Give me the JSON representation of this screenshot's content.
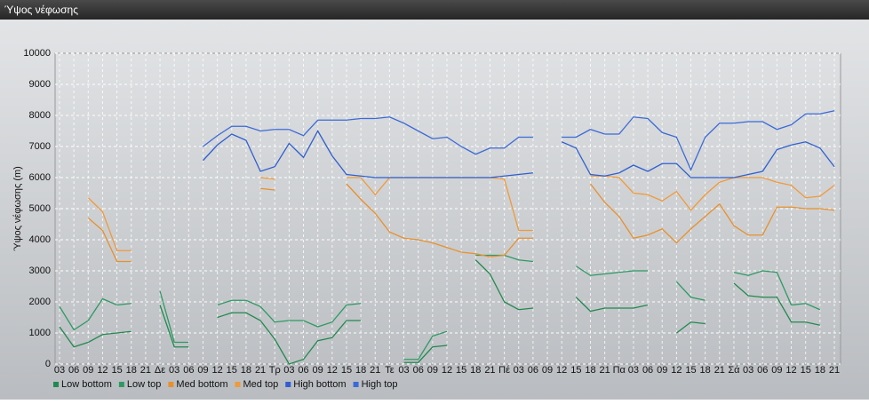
{
  "window": {
    "title": "Ύψος νέφωσης"
  },
  "chart_data": {
    "type": "line",
    "ylabel": "Ύψος νέφωσης (m)",
    "categories": [
      "03",
      "06",
      "09",
      "12",
      "15",
      "18",
      "21",
      "Δε",
      "03",
      "06",
      "09",
      "12",
      "15",
      "18",
      "21",
      "Τρ",
      "03",
      "06",
      "09",
      "12",
      "15",
      "18",
      "21",
      "Τε",
      "03",
      "06",
      "09",
      "12",
      "15",
      "18",
      "21",
      "Πέ",
      "03",
      "06",
      "09",
      "12",
      "15",
      "18",
      "21",
      "Πα",
      "03",
      "06",
      "09",
      "12",
      "15",
      "18",
      "21",
      "Σά",
      "03",
      "06",
      "09",
      "12",
      "15",
      "18",
      "21"
    ],
    "series": [
      {
        "name": "Low bottom",
        "color": "#23894f",
        "values": [
          1200,
          550,
          700,
          950,
          1000,
          1050,
          null,
          1900,
          550,
          550,
          null,
          1500,
          1650,
          1650,
          1400,
          800,
          0,
          150,
          750,
          850,
          1400,
          1400,
          null,
          null,
          50,
          50,
          550,
          600,
          null,
          3350,
          2900,
          2000,
          1750,
          1800,
          null,
          null,
          2150,
          1700,
          1800,
          1800,
          1800,
          1900,
          null,
          1000,
          1350,
          1300,
          null,
          2600,
          2200,
          2150,
          2150,
          1350,
          1350,
          1250,
          null
        ]
      },
      {
        "name": "Low top",
        "color": "#2e9a63",
        "values": [
          1850,
          1100,
          1400,
          2100,
          1900,
          1950,
          null,
          2350,
          700,
          700,
          null,
          1900,
          2050,
          2050,
          1850,
          1350,
          1400,
          1400,
          1200,
          1350,
          1900,
          1950,
          null,
          null,
          150,
          150,
          900,
          1050,
          null,
          3500,
          3500,
          3500,
          3350,
          3300,
          null,
          null,
          3150,
          2850,
          2900,
          2950,
          3000,
          3000,
          null,
          2650,
          2150,
          2050,
          null,
          2950,
          2850,
          3000,
          2950,
          1900,
          1950,
          1750,
          null
        ]
      },
      {
        "name": "Med bottom",
        "color": "#e8902c",
        "values": [
          null,
          null,
          4700,
          4300,
          3300,
          3300,
          null,
          null,
          null,
          null,
          null,
          null,
          null,
          null,
          5650,
          5600,
          null,
          null,
          null,
          null,
          5800,
          5300,
          4850,
          4250,
          4050,
          4000,
          3900,
          3750,
          3600,
          3550,
          3450,
          3500,
          4050,
          4050,
          null,
          null,
          null,
          5800,
          5200,
          4750,
          4050,
          4150,
          4350,
          3900,
          4350,
          4750,
          5150,
          4450,
          4150,
          4150,
          5050,
          5050,
          5000,
          5000,
          4950
        ]
      },
      {
        "name": "Med top",
        "color": "#f09a3a",
        "values": [
          null,
          null,
          5350,
          4900,
          3650,
          3650,
          null,
          null,
          null,
          null,
          null,
          null,
          null,
          null,
          6000,
          5950,
          null,
          null,
          null,
          null,
          6000,
          6000,
          5450,
          6000,
          6000,
          6000,
          6000,
          6000,
          6000,
          6000,
          6000,
          5950,
          4300,
          4300,
          null,
          null,
          null,
          6050,
          6050,
          6000,
          5500,
          5450,
          5250,
          5550,
          4950,
          5450,
          5850,
          6000,
          6000,
          6000,
          5850,
          5750,
          5350,
          5400,
          5750
        ]
      },
      {
        "name": "High bottom",
        "color": "#2f5fd0",
        "values": [
          null,
          null,
          null,
          null,
          null,
          null,
          null,
          null,
          null,
          null,
          6550,
          7050,
          7400,
          7200,
          6200,
          6350,
          7100,
          6650,
          7500,
          6700,
          6100,
          6050,
          6000,
          6000,
          6000,
          6000,
          6000,
          6000,
          6000,
          6000,
          6000,
          6050,
          6100,
          6150,
          null,
          7150,
          6950,
          6100,
          6050,
          6150,
          6400,
          6200,
          6450,
          6450,
          6000,
          6000,
          6000,
          6000,
          6100,
          6200,
          6900,
          7050,
          7150,
          6950,
          6350
        ]
      },
      {
        "name": "High top",
        "color": "#3b6ad8",
        "values": [
          null,
          null,
          null,
          null,
          null,
          null,
          null,
          null,
          null,
          null,
          7000,
          7350,
          7650,
          7650,
          7500,
          7550,
          7550,
          7350,
          7850,
          7850,
          7850,
          7900,
          7900,
          7950,
          7750,
          7500,
          7250,
          7300,
          7000,
          6750,
          6950,
          6950,
          7300,
          7300,
          null,
          7300,
          7300,
          7550,
          7400,
          7400,
          7950,
          7900,
          7450,
          7300,
          6250,
          7300,
          7750,
          7750,
          7800,
          7800,
          7550,
          7700,
          8050,
          8050,
          8150
        ]
      }
    ],
    "ylim": [
      0,
      10000
    ],
    "yticks": [
      0,
      1000,
      2000,
      3000,
      4000,
      5000,
      6000,
      7000,
      8000,
      9000,
      10000
    ],
    "grid": true,
    "legend": "bottom-left"
  }
}
